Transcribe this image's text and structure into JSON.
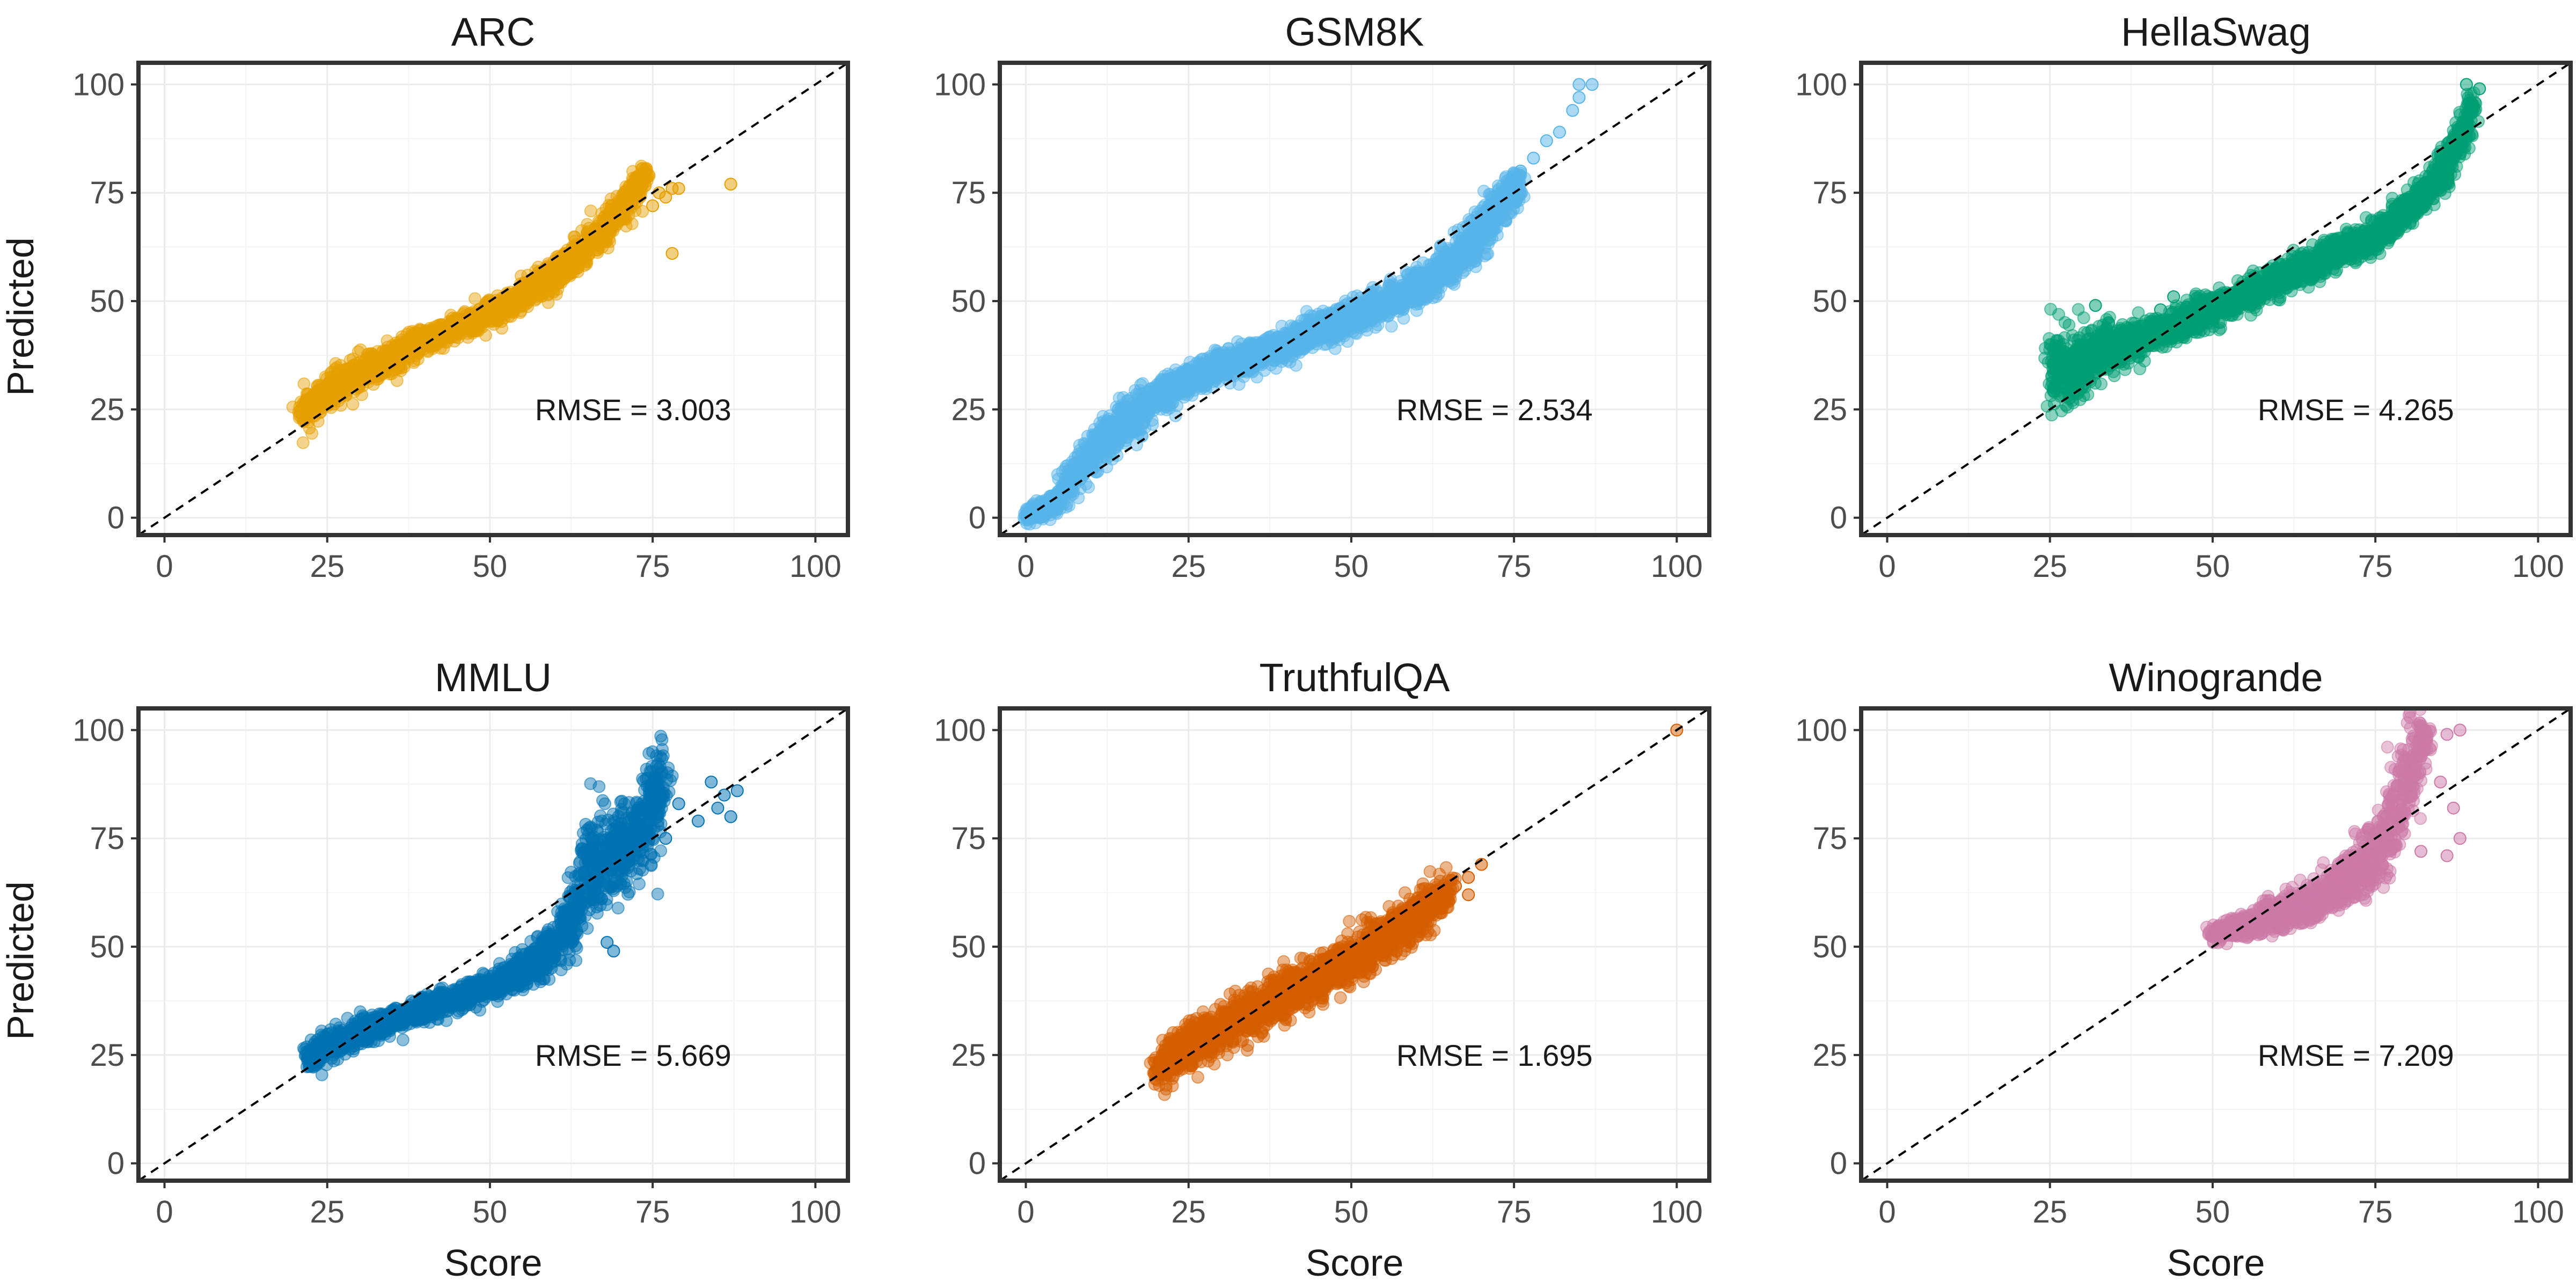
{
  "figure": {
    "ylabel": "Predicted",
    "xlabel": "Score"
  },
  "chart_data": [
    {
      "type": "scatter",
      "title": "ARC",
      "xlabel": "Score",
      "ylabel": "Predicted",
      "xlim": [
        -4,
        105
      ],
      "ylim": [
        -4,
        105
      ],
      "xticks": [
        0,
        25,
        50,
        75,
        100
      ],
      "yticks": [
        0,
        25,
        50,
        75,
        100
      ],
      "grid": true,
      "reference_line": "y = x (dashed)",
      "color": "#E69F00",
      "annotation": "RMSE = 3.003",
      "rmse": 3.003,
      "curve": [
        [
          21,
          24
        ],
        [
          25,
          29
        ],
        [
          30,
          33
        ],
        [
          35,
          37
        ],
        [
          40,
          41
        ],
        [
          45,
          44
        ],
        [
          50,
          47
        ],
        [
          55,
          51
        ],
        [
          60,
          56
        ],
        [
          65,
          63
        ],
        [
          70,
          71
        ],
        [
          74,
          79
        ]
      ],
      "spread": [
        4,
        4,
        4,
        4,
        3,
        3,
        3,
        3,
        4,
        4,
        4,
        3
      ],
      "outliers": [
        [
          75,
          72
        ],
        [
          76,
          75
        ],
        [
          77,
          74
        ],
        [
          78,
          76
        ],
        [
          79,
          76
        ],
        [
          87,
          77
        ],
        [
          78,
          61
        ]
      ]
    },
    {
      "type": "scatter",
      "title": "GSM8K",
      "xlabel": "Score",
      "ylabel": "Predicted",
      "xlim": [
        -4,
        105
      ],
      "ylim": [
        -4,
        105
      ],
      "xticks": [
        0,
        25,
        50,
        75,
        100
      ],
      "yticks": [
        0,
        25,
        50,
        75,
        100
      ],
      "grid": true,
      "reference_line": "y = x (dashed)",
      "color": "#56B4E9",
      "annotation": "RMSE = 2.534",
      "rmse": 2.534,
      "curve": [
        [
          0,
          0
        ],
        [
          5,
          4
        ],
        [
          8,
          11
        ],
        [
          12,
          18
        ],
        [
          16,
          23
        ],
        [
          20,
          28
        ],
        [
          25,
          32
        ],
        [
          30,
          35
        ],
        [
          40,
          40
        ],
        [
          50,
          46
        ],
        [
          60,
          53
        ],
        [
          65,
          58
        ],
        [
          70,
          66
        ],
        [
          73,
          73
        ],
        [
          76,
          77
        ]
      ],
      "spread": [
        2,
        3,
        5,
        5,
        5,
        4,
        4,
        4,
        4,
        4,
        4,
        5,
        6,
        6,
        4
      ],
      "outliers": [
        [
          76,
          80
        ],
        [
          78,
          83
        ],
        [
          80,
          87
        ],
        [
          82,
          89
        ],
        [
          84,
          94
        ],
        [
          85,
          97
        ],
        [
          87,
          100
        ],
        [
          85,
          100
        ]
      ]
    },
    {
      "type": "scatter",
      "title": "HellaSwag",
      "xlabel": "Score",
      "ylabel": "Predicted",
      "xlim": [
        -4,
        105
      ],
      "ylim": [
        -4,
        105
      ],
      "xticks": [
        0,
        25,
        50,
        75,
        100
      ],
      "yticks": [
        0,
        25,
        50,
        75,
        100
      ],
      "grid": true,
      "reference_line": "y = x (dashed)",
      "color": "#009E73",
      "annotation": "RMSE = 4.265",
      "rmse": 4.265,
      "curve": [
        [
          25,
          34
        ],
        [
          28,
          34
        ],
        [
          32,
          38
        ],
        [
          40,
          42
        ],
        [
          50,
          48
        ],
        [
          60,
          55
        ],
        [
          70,
          62
        ],
        [
          75,
          65
        ],
        [
          80,
          71
        ],
        [
          85,
          79
        ],
        [
          88,
          87
        ],
        [
          90,
          96
        ]
      ],
      "spread": [
        10,
        9,
        7,
        4,
        4,
        4,
        4,
        4,
        4,
        5,
        6,
        6
      ],
      "outliers": [
        [
          32,
          49
        ],
        [
          34,
          45
        ],
        [
          42,
          48
        ],
        [
          44,
          51
        ],
        [
          58,
          53
        ],
        [
          70,
          60
        ],
        [
          89,
          100
        ],
        [
          91,
          99
        ]
      ]
    },
    {
      "type": "scatter",
      "title": "MMLU",
      "xlabel": "Score",
      "ylabel": "Predicted",
      "xlim": [
        -4,
        105
      ],
      "ylim": [
        -4,
        105
      ],
      "xticks": [
        0,
        25,
        50,
        75,
        100
      ],
      "yticks": [
        0,
        25,
        50,
        75,
        100
      ],
      "grid": true,
      "reference_line": "y = x (dashed)",
      "color": "#0072B2",
      "annotation": "RMSE = 5.669",
      "rmse": 5.669,
      "curve": [
        [
          22,
          24
        ],
        [
          25,
          27
        ],
        [
          30,
          30
        ],
        [
          35,
          33
        ],
        [
          40,
          36
        ],
        [
          45,
          38
        ],
        [
          50,
          41
        ],
        [
          55,
          44
        ],
        [
          60,
          50
        ],
        [
          63,
          58
        ],
        [
          65,
          68
        ],
        [
          68,
          70
        ],
        [
          72,
          75
        ],
        [
          77,
          88
        ]
      ],
      "spread": [
        4,
        4,
        3,
        3,
        3,
        3,
        3,
        4,
        6,
        10,
        14,
        12,
        10,
        14
      ],
      "outliers": [
        [
          68,
          51
        ],
        [
          69,
          49
        ],
        [
          71,
          77
        ],
        [
          73,
          72
        ],
        [
          75,
          81
        ],
        [
          77,
          75
        ],
        [
          79,
          83
        ],
        [
          82,
          79
        ],
        [
          84,
          88
        ],
        [
          85,
          82
        ],
        [
          86,
          85
        ],
        [
          88,
          86
        ],
        [
          87,
          80
        ]
      ]
    },
    {
      "type": "scatter",
      "title": "TruthfulQA",
      "xlabel": "Score",
      "ylabel": "Predicted",
      "xlim": [
        -4,
        105
      ],
      "ylim": [
        -4,
        105
      ],
      "xticks": [
        0,
        25,
        50,
        75,
        100
      ],
      "yticks": [
        0,
        25,
        50,
        75,
        100
      ],
      "grid": true,
      "reference_line": "y = x (dashed)",
      "color": "#D55E00",
      "annotation": "RMSE = 1.695",
      "rmse": 1.695,
      "curve": [
        [
          20,
          22
        ],
        [
          25,
          27
        ],
        [
          30,
          31
        ],
        [
          35,
          35
        ],
        [
          40,
          39
        ],
        [
          45,
          43
        ],
        [
          50,
          47
        ],
        [
          55,
          52
        ],
        [
          60,
          57
        ],
        [
          65,
          63
        ]
      ],
      "spread": [
        5,
        6,
        6,
        6,
        6,
        6,
        6,
        6,
        6,
        5
      ],
      "outliers": [
        [
          66,
          64
        ],
        [
          68,
          66
        ],
        [
          70,
          69
        ],
        [
          68,
          62
        ],
        [
          100,
          100
        ]
      ]
    },
    {
      "type": "scatter",
      "title": "Winogrande",
      "xlabel": "Score",
      "ylabel": "Predicted",
      "xlim": [
        -4,
        105
      ],
      "ylim": [
        -4,
        105
      ],
      "xticks": [
        0,
        25,
        50,
        75,
        100
      ],
      "yticks": [
        0,
        25,
        50,
        75,
        100
      ],
      "grid": true,
      "reference_line": "y = x (dashed)",
      "color": "#CC79A7",
      "annotation": "RMSE = 7.209",
      "rmse": 7.209,
      "curve": [
        [
          50,
          53
        ],
        [
          55,
          55
        ],
        [
          60,
          57
        ],
        [
          65,
          60
        ],
        [
          70,
          64
        ],
        [
          74,
          70
        ],
        [
          77,
          77
        ],
        [
          79,
          86
        ],
        [
          81,
          93
        ],
        [
          83,
          99
        ]
      ],
      "spread": [
        2,
        3,
        4,
        5,
        6,
        8,
        12,
        14,
        12,
        4
      ],
      "outliers": [
        [
          86,
          99
        ],
        [
          88,
          100
        ],
        [
          85,
          88
        ],
        [
          87,
          82
        ],
        [
          88,
          75
        ],
        [
          86,
          71
        ],
        [
          82,
          72
        ]
      ]
    }
  ]
}
